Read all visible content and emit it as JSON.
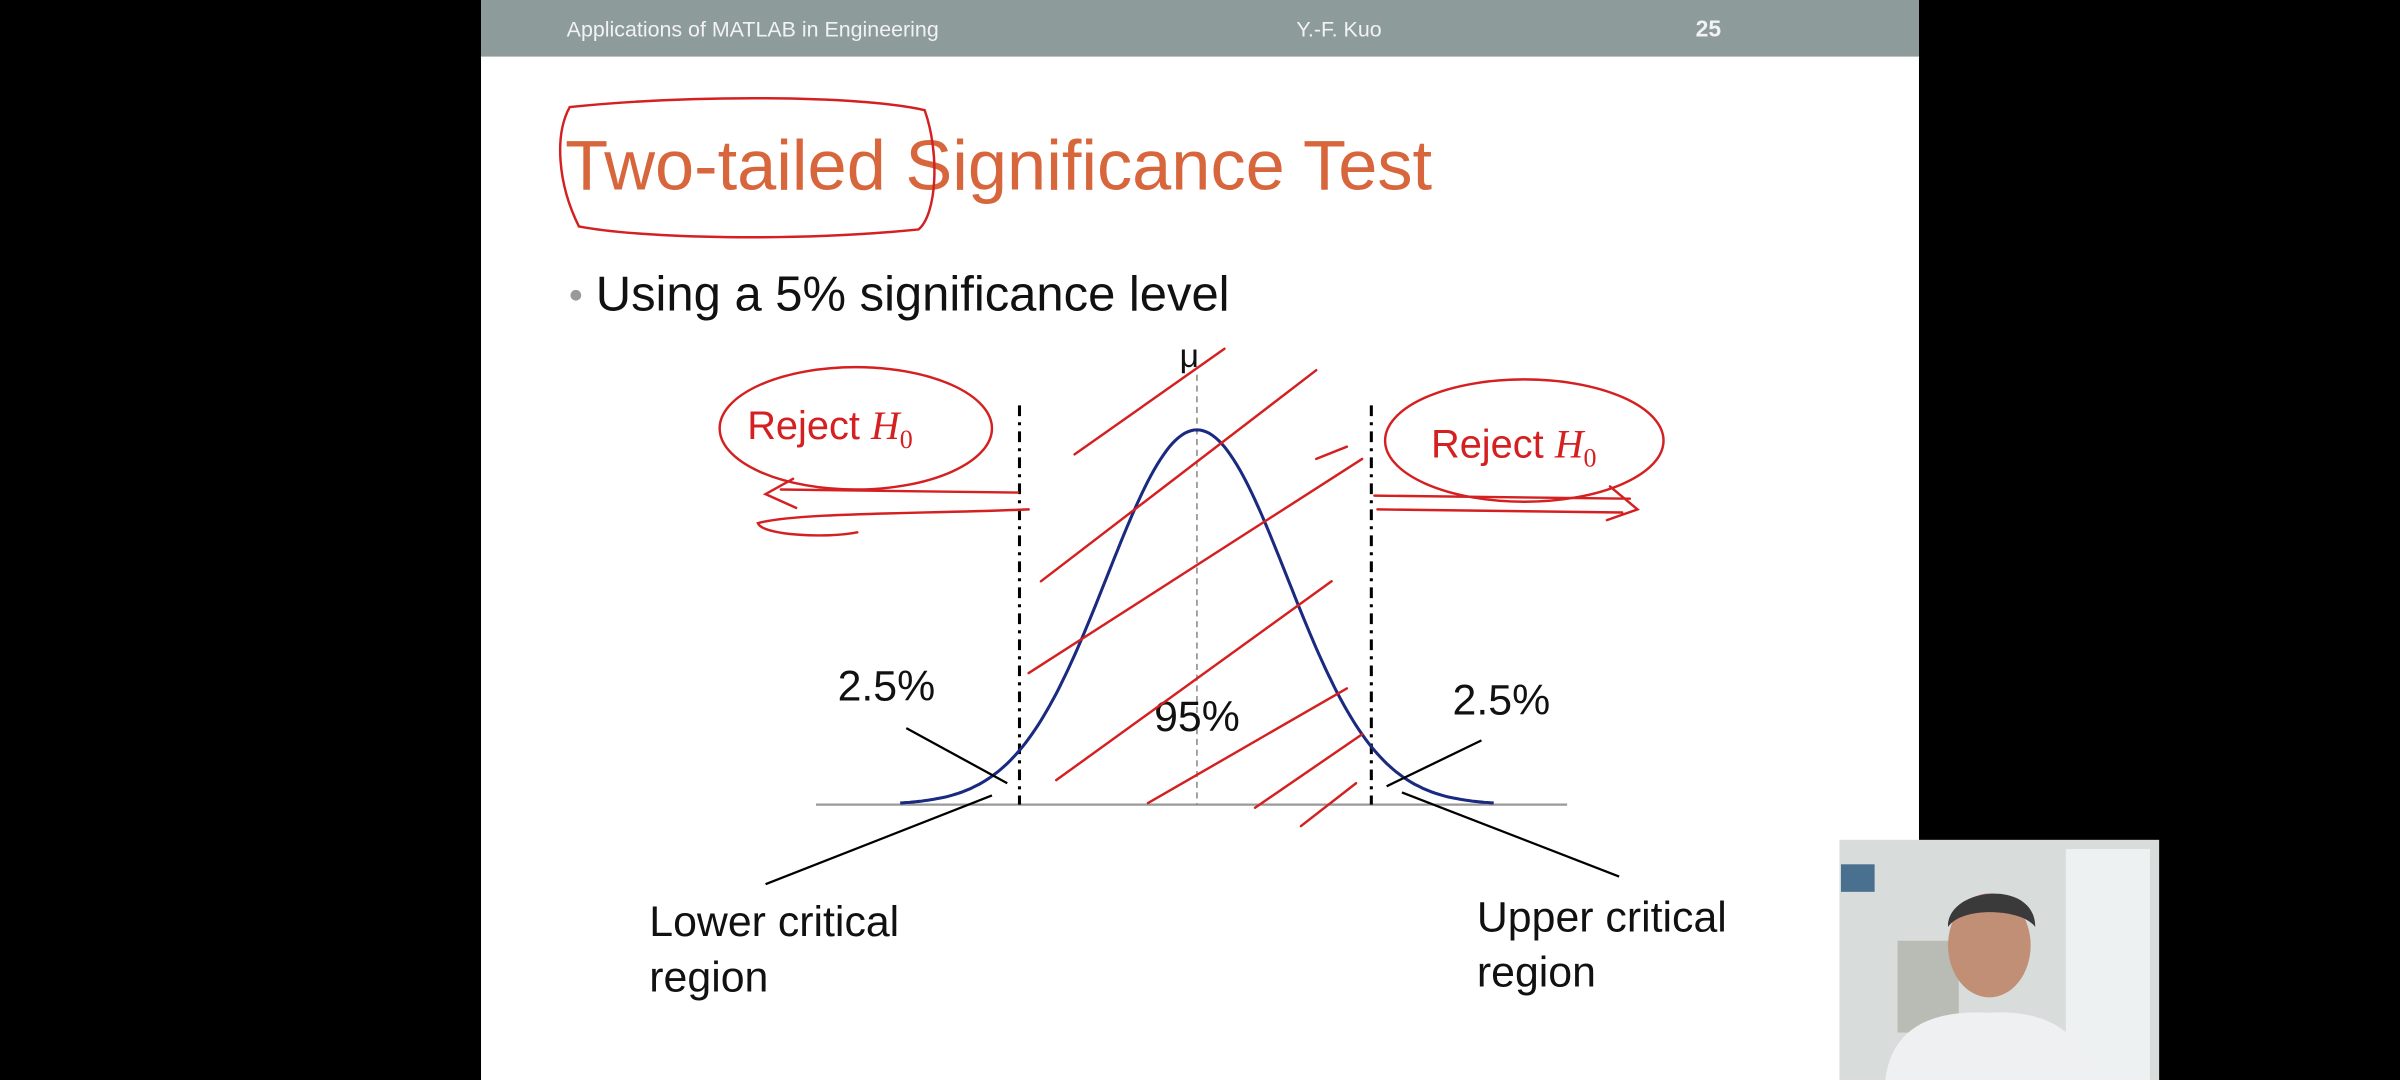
{
  "header": {
    "course": "Applications of MATLAB in Engineering",
    "author": "Y.-F. Kuo",
    "page": "25"
  },
  "slide": {
    "title": "Two-tailed Significance Test",
    "bullet": "Using a 5% significance level"
  },
  "diagram": {
    "mean_label": "μ",
    "lower_tail": "2.5%",
    "center": "95%",
    "upper_tail": "2.5%",
    "lower_region": [
      "Lower critical",
      "region"
    ],
    "upper_region": [
      "Upper critical",
      "region"
    ]
  },
  "annotations": {
    "left": {
      "text": "Reject",
      "symbol": "H",
      "subscript": "0"
    },
    "right": {
      "text": "Reject",
      "symbol": "H",
      "subscript": "0"
    }
  }
}
